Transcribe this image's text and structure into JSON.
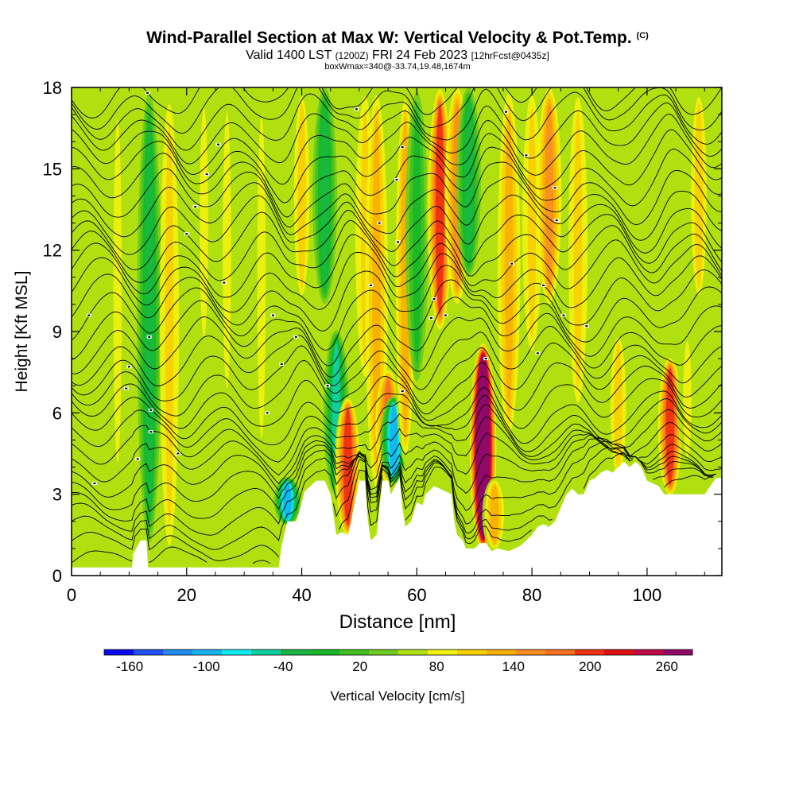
{
  "title": {
    "main": "Wind-Parallel Section at Max W: Vertical Velocity & Pot.Temp.",
    "copyright": "(C)",
    "valid_prefix": "Valid 1400 LST",
    "valid_utc": "(1200Z)",
    "valid_date": "FRI 24 Feb 2023",
    "forecast": "[12hrFcst@0435z]",
    "box_info": "boxWmax=340@-33.74,19.48,1674m"
  },
  "colors": {
    "scale": [
      "#0a0af0",
      "#1e50f5",
      "#1e8cf0",
      "#14b4f0",
      "#10ecf0",
      "#10d0a0",
      "#18b840",
      "#18b828",
      "#40c020",
      "#70cc20",
      "#b0e010",
      "#f0f010",
      "#f8d000",
      "#f8b000",
      "#f89020",
      "#f87020",
      "#f03010",
      "#e01010",
      "#c00848",
      "#900868"
    ],
    "contour": "#000000",
    "terrain": "#ffffff"
  },
  "chart_data": {
    "type": "heatmap",
    "xlabel": "Distance [nm]",
    "ylabel": "Height [Kft MSL]",
    "xlim": [
      0,
      113
    ],
    "ylim": [
      0,
      18
    ],
    "xticks": [
      0,
      20,
      40,
      60,
      80,
      100
    ],
    "yticks": [
      0,
      3,
      6,
      9,
      12,
      15,
      18
    ],
    "colorbar": {
      "label": "Vertical Velocity [cm/s]",
      "min": -180,
      "max": 280,
      "step": 20,
      "tick_labels": [
        "-160",
        "-100",
        "-40",
        "20",
        "80",
        "140",
        "200",
        "260"
      ]
    },
    "background_w": 20,
    "columns": [
      {
        "x": 3,
        "w": 20,
        "y0": 2.5,
        "y1": 18
      },
      {
        "x": 8,
        "w": 40,
        "y0": 3,
        "y1": 18
      },
      {
        "x": 13.5,
        "w": -60,
        "y0": 1,
        "y1": 18
      },
      {
        "x": 17,
        "w": 60,
        "y0": 0.5,
        "y1": 18
      },
      {
        "x": 23,
        "w": 40,
        "y0": 8,
        "y1": 18
      },
      {
        "x": 27,
        "w": 40,
        "y0": 6,
        "y1": 18
      },
      {
        "x": 33,
        "w": 50,
        "y0": 4,
        "y1": 18
      },
      {
        "x": 37.5,
        "w": -120,
        "y0": 2,
        "y1": 3.5
      },
      {
        "x": 40,
        "w": 70,
        "y0": 10,
        "y1": 18
      },
      {
        "x": 44,
        "w": -60,
        "y0": 10,
        "y1": 18
      },
      {
        "x": 46,
        "w": -70,
        "y0": 3,
        "y1": 9
      },
      {
        "x": 48,
        "w": 150,
        "y0": 1.5,
        "y1": 6.5
      },
      {
        "x": 51,
        "w": 60,
        "y0": 7,
        "y1": 18
      },
      {
        "x": 53,
        "w": 80,
        "y0": 3,
        "y1": 18
      },
      {
        "x": 55,
        "w": 120,
        "y0": 3.5,
        "y1": 7.5
      },
      {
        "x": 56,
        "w": -120,
        "y0": 3.5,
        "y1": 6.5
      },
      {
        "x": 58,
        "w": 90,
        "y0": 4,
        "y1": 18
      },
      {
        "x": 60,
        "w": -40,
        "y0": 7,
        "y1": 18
      },
      {
        "x": 64,
        "w": 150,
        "y0": 9,
        "y1": 18
      },
      {
        "x": 67,
        "w": 100,
        "y0": 10,
        "y1": 18
      },
      {
        "x": 69,
        "w": -50,
        "y0": 11,
        "y1": 18
      },
      {
        "x": 71.5,
        "w": 270,
        "y0": 1,
        "y1": 8.5
      },
      {
        "x": 73.5,
        "w": 90,
        "y0": 1,
        "y1": 3.5
      },
      {
        "x": 76,
        "w": 80,
        "y0": 5,
        "y1": 18
      },
      {
        "x": 80,
        "w": 60,
        "y0": 8,
        "y1": 18
      },
      {
        "x": 83,
        "w": 100,
        "y0": 10,
        "y1": 18
      },
      {
        "x": 88,
        "w": 60,
        "y0": 6,
        "y1": 18
      },
      {
        "x": 95,
        "w": 70,
        "y0": 3.5,
        "y1": 9
      },
      {
        "x": 104,
        "w": 150,
        "y0": 3,
        "y1": 8
      },
      {
        "x": 107,
        "w": 50,
        "y0": 4,
        "y1": 9
      },
      {
        "x": 109,
        "w": 70,
        "y0": 10,
        "y1": 18
      }
    ],
    "terrain": [
      [
        0,
        0.3
      ],
      [
        10.5,
        0.3
      ],
      [
        10.7,
        0.8
      ],
      [
        12,
        1.3
      ],
      [
        13,
        1.3
      ],
      [
        13.3,
        0.3
      ],
      [
        14.5,
        0.3
      ],
      [
        15,
        0.3
      ],
      [
        36,
        0.3
      ],
      [
        36.5,
        1.1
      ],
      [
        37.5,
        2
      ],
      [
        39,
        2
      ],
      [
        39.5,
        2.3
      ],
      [
        40.5,
        3.1
      ],
      [
        42.5,
        3.5
      ],
      [
        44,
        3.5
      ],
      [
        45,
        3
      ],
      [
        46,
        1.5
      ],
      [
        47,
        1.6
      ],
      [
        48,
        1.5
      ],
      [
        48.5,
        1.9
      ],
      [
        49,
        2.5
      ],
      [
        50,
        3.5
      ],
      [
        51,
        3.5
      ],
      [
        51.5,
        2
      ],
      [
        52,
        1.3
      ],
      [
        53,
        1.5
      ],
      [
        54,
        3.5
      ],
      [
        55,
        3.5
      ],
      [
        55.5,
        3
      ],
      [
        56,
        3.2
      ],
      [
        57,
        3.6
      ],
      [
        57.5,
        2.5
      ],
      [
        58,
        1.8
      ],
      [
        59,
        2
      ],
      [
        60,
        2.7
      ],
      [
        61,
        2.6
      ],
      [
        61.5,
        3
      ],
      [
        63,
        3.3
      ],
      [
        64,
        3.2
      ],
      [
        66,
        3
      ],
      [
        66.5,
        2
      ],
      [
        67,
        1.5
      ],
      [
        68,
        1.3
      ],
      [
        68.5,
        1
      ],
      [
        70,
        1
      ],
      [
        71,
        1.2
      ],
      [
        72,
        1.2
      ],
      [
        73,
        0.9
      ],
      [
        74,
        1
      ],
      [
        76,
        0.9
      ],
      [
        78,
        1.1
      ],
      [
        79,
        1.3
      ],
      [
        80,
        1.5
      ],
      [
        81,
        1.8
      ],
      [
        82,
        1.9
      ],
      [
        83,
        1.8
      ],
      [
        84,
        2
      ],
      [
        85,
        2.5
      ],
      [
        86,
        3
      ],
      [
        87,
        3.2
      ],
      [
        88,
        3
      ],
      [
        89,
        3
      ],
      [
        90,
        3.5
      ],
      [
        91,
        3.6
      ],
      [
        92,
        3.8
      ],
      [
        93,
        3.9
      ],
      [
        94,
        3.8
      ],
      [
        95,
        4
      ],
      [
        96,
        4.2
      ],
      [
        97,
        4
      ],
      [
        98,
        4.2
      ],
      [
        99,
        4
      ],
      [
        100,
        3.5
      ],
      [
        101,
        3.4
      ],
      [
        102,
        3.3
      ],
      [
        103,
        3
      ],
      [
        110,
        3
      ],
      [
        111,
        3.3
      ],
      [
        112,
        3.6
      ],
      [
        113,
        3.6
      ]
    ],
    "contours": {
      "count": 33,
      "base": 0.2,
      "spacing": 0.55
    },
    "isotherm_labels": [
      [
        3,
        9.6
      ],
      [
        4,
        3.4
      ],
      [
        10,
        7.7
      ],
      [
        9.5,
        6.9
      ],
      [
        11.5,
        4.3
      ],
      [
        13.2,
        17.8
      ],
      [
        13.5,
        8.8
      ],
      [
        13.8,
        6.1
      ],
      [
        13.8,
        5.3
      ],
      [
        18.5,
        4.5
      ],
      [
        20,
        12.6
      ],
      [
        21.5,
        13.6
      ],
      [
        23.5,
        14.8
      ],
      [
        25.5,
        15.9
      ],
      [
        26.5,
        10.8
      ],
      [
        34,
        6.0
      ],
      [
        35,
        9.6
      ],
      [
        36.5,
        7.8
      ],
      [
        39,
        8.8
      ],
      [
        44.5,
        7.0
      ],
      [
        49.5,
        17.2
      ],
      [
        52,
        10.7
      ],
      [
        53.5,
        13.0
      ],
      [
        56.5,
        14.6
      ],
      [
        56.7,
        12.3
      ],
      [
        57.5,
        6.8
      ],
      [
        57.5,
        15.8
      ],
      [
        62.5,
        9.5
      ],
      [
        63,
        10.2
      ],
      [
        65,
        9.6
      ],
      [
        72,
        8.0
      ],
      [
        75.5,
        17.1
      ],
      [
        79,
        15.5
      ],
      [
        81,
        8.2
      ],
      [
        82,
        10.7
      ],
      [
        84,
        14.3
      ],
      [
        84.3,
        13.1
      ],
      [
        85.5,
        9.6
      ],
      [
        89.5,
        9.2
      ],
      [
        76.5,
        11.5
      ]
    ]
  }
}
